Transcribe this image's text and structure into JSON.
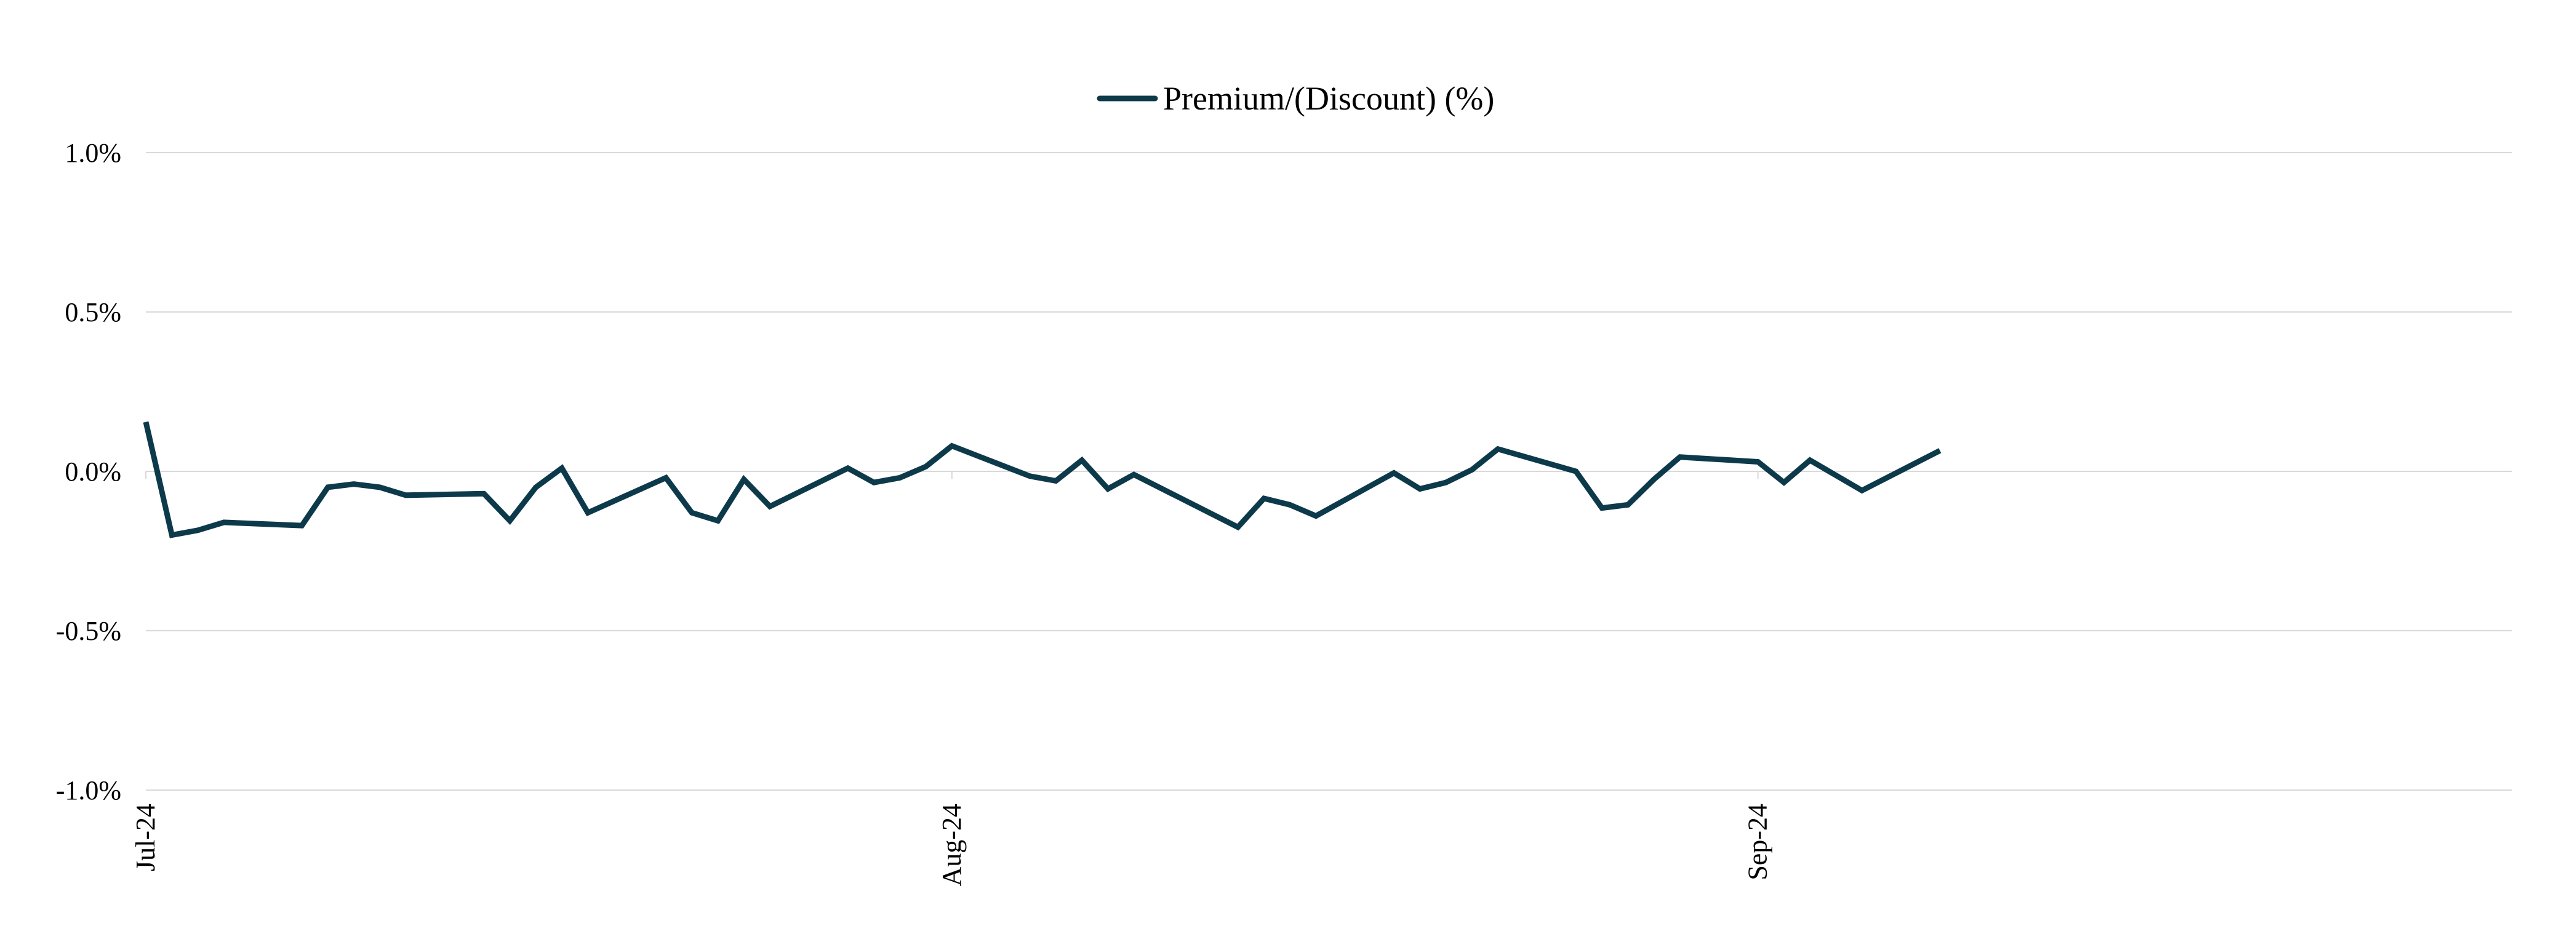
{
  "chart_data": {
    "type": "line",
    "title": "",
    "xlabel": "",
    "ylabel": "",
    "legend": {
      "position": "top-center",
      "entries": [
        "Premium/(Discount) (%)"
      ]
    },
    "grid": true,
    "ylim": [
      -1.0,
      1.0
    ],
    "y_ticks": [
      1.0,
      0.5,
      0.0,
      -0.5,
      -1.0
    ],
    "y_tick_labels": [
      "1.0%",
      "0.5%",
      "0.0%",
      "-0.5%",
      "-1.0%"
    ],
    "xlim": [
      "2024-07-01",
      "2024-09-30"
    ],
    "x_ticks": [
      "2024-07-01",
      "2024-08-01",
      "2024-09-01"
    ],
    "x_tick_labels": [
      "Jul-24",
      "Aug-24",
      "Sep-24"
    ],
    "x_tick_rotation": "vertical",
    "series": [
      {
        "name": "Premium/(Discount) (%)",
        "color": "#0d3a4a",
        "points": [
          [
            "2024-07-01",
            0.155
          ],
          [
            "2024-07-02",
            -0.2
          ],
          [
            "2024-07-03",
            -0.185
          ],
          [
            "2024-07-04",
            -0.16
          ],
          [
            "2024-07-07",
            -0.17
          ],
          [
            "2024-07-08",
            -0.05
          ],
          [
            "2024-07-09",
            -0.04
          ],
          [
            "2024-07-10",
            -0.05
          ],
          [
            "2024-07-11",
            -0.075
          ],
          [
            "2024-07-14",
            -0.07
          ],
          [
            "2024-07-15",
            -0.155
          ],
          [
            "2024-07-16",
            -0.05
          ],
          [
            "2024-07-17",
            0.01
          ],
          [
            "2024-07-18",
            -0.13
          ],
          [
            "2024-07-21",
            -0.02
          ],
          [
            "2024-07-22",
            -0.13
          ],
          [
            "2024-07-23",
            -0.155
          ],
          [
            "2024-07-24",
            -0.025
          ],
          [
            "2024-07-25",
            -0.11
          ],
          [
            "2024-07-28",
            0.01
          ],
          [
            "2024-07-29",
            -0.035
          ],
          [
            "2024-07-30",
            -0.02
          ],
          [
            "2024-07-31",
            0.015
          ],
          [
            "2024-08-01",
            0.08
          ],
          [
            "2024-08-04",
            -0.015
          ],
          [
            "2024-08-05",
            -0.03
          ],
          [
            "2024-08-06",
            0.035
          ],
          [
            "2024-08-07",
            -0.055
          ],
          [
            "2024-08-08",
            -0.01
          ],
          [
            "2024-08-12",
            -0.175
          ],
          [
            "2024-08-13",
            -0.085
          ],
          [
            "2024-08-14",
            -0.105
          ],
          [
            "2024-08-15",
            -0.14
          ],
          [
            "2024-08-18",
            -0.005
          ],
          [
            "2024-08-19",
            -0.055
          ],
          [
            "2024-08-20",
            -0.035
          ],
          [
            "2024-08-21",
            0.005
          ],
          [
            "2024-08-22",
            0.07
          ],
          [
            "2024-08-25",
            0.0
          ],
          [
            "2024-08-26",
            -0.115
          ],
          [
            "2024-08-27",
            -0.105
          ],
          [
            "2024-08-28",
            -0.025
          ],
          [
            "2024-08-29",
            0.045
          ],
          [
            "2024-09-01",
            0.03
          ],
          [
            "2024-09-02",
            -0.035
          ],
          [
            "2024-09-03",
            0.035
          ],
          [
            "2024-09-05",
            -0.06
          ],
          [
            "2024-09-08",
            0.065
          ]
        ]
      }
    ]
  }
}
